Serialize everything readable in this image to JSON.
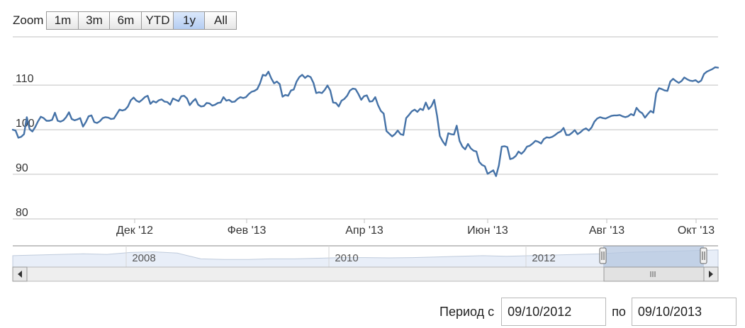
{
  "zoom": {
    "label": "Zoom",
    "buttons": [
      {
        "label": "1m",
        "active": false
      },
      {
        "label": "3m",
        "active": false
      },
      {
        "label": "6m",
        "active": false
      },
      {
        "label": "YTD",
        "active": false
      },
      {
        "label": "1y",
        "active": true
      },
      {
        "label": "All",
        "active": false
      }
    ]
  },
  "period": {
    "label_from": "Период с",
    "from_value": "09/10/2012",
    "label_to": "по",
    "to_value": "09/10/2013"
  },
  "colors": {
    "series": "#4572a7",
    "grid": "#c0c0c0",
    "navigator_fill": "#e8eef8",
    "navigator_selected": "#b5c7e0"
  },
  "chart_data": {
    "type": "line",
    "series": [
      {
        "values": [
          100,
          99.8,
          98.2,
          98.4,
          99,
          102.8,
          100.1,
          99.6,
          100.6,
          101.9,
          102.9,
          102.6,
          102,
          102,
          102.2,
          103.8,
          102,
          101.8,
          102.1,
          102.8,
          103.9,
          102.4,
          102.1,
          102.3,
          102.6,
          100.7,
          101.7,
          103,
          103.2,
          101.7,
          101.5,
          101.9,
          102.6,
          102.8,
          102.7,
          102.4,
          102.5,
          103.5,
          104.5,
          104.3,
          104.5,
          105.2,
          106.6,
          107.2,
          106.5,
          106.2,
          106.7,
          107.3,
          107.6,
          105.8,
          106.4,
          106.1,
          106.6,
          106.8,
          106.3,
          106.2,
          105.6,
          107,
          106.7,
          106.4,
          107.5,
          107.6,
          107,
          105.5,
          106.3,
          106.9,
          105.6,
          105.2,
          105.3,
          106,
          105.9,
          105.4,
          105.6,
          106,
          106.1,
          107.3,
          106.5,
          106.7,
          106.2,
          106.3,
          106.9,
          107.3,
          107.1,
          107.3,
          108,
          108.5,
          108.7,
          109.1,
          110.4,
          112.3,
          112.1,
          113,
          111.5,
          110.4,
          110.8,
          110.2,
          107.4,
          107.8,
          107.6,
          108.8,
          109,
          110.8,
          111.8,
          112.3,
          111.6,
          112.1,
          111.8,
          110.5,
          108.2,
          108.4,
          108.2,
          108.9,
          109.9,
          108.8,
          106.1,
          106,
          105.2,
          106.5,
          106.9,
          107.6,
          108.8,
          109.2,
          109.1,
          108,
          106.7,
          107.5,
          107.7,
          106.3,
          106.4,
          107.3,
          105.5,
          104.2,
          103.6,
          99.7,
          99.1,
          98.5,
          99,
          99.8,
          99,
          98.8,
          102.6,
          103.3,
          104.1,
          104.5,
          104,
          104.7,
          104.4,
          106.1,
          104.6,
          105.3,
          106.7,
          103.1,
          98.6,
          97.4,
          96.5,
          99.2,
          99,
          98.9,
          100.9,
          97.5,
          96.2,
          95.6,
          96.8,
          95.8,
          95.3,
          95.1,
          92.8,
          92.1,
          91.8,
          90.1,
          90.5,
          90.9,
          89.6,
          92,
          96.2,
          96.3,
          96.1,
          93.4,
          93.6,
          94.1,
          95.1,
          94.6,
          95.2,
          96.2,
          96.4,
          96.9,
          97.5,
          97.3,
          96.9,
          97.9,
          98.3,
          98.2,
          98.4,
          98.8,
          99.3,
          99.6,
          100.4,
          98.8,
          98.8,
          99.3,
          99.9,
          99,
          99.4,
          100,
          100.3,
          99.8,
          100.5,
          101.8,
          102.5,
          102.8,
          102.6,
          102.5,
          102.8,
          103.1,
          103.2,
          103.2,
          103.3,
          103,
          102.8,
          103,
          103.5,
          103.2,
          104.9,
          104.1,
          103.7,
          102.7,
          103.5,
          104.2,
          103.8,
          108.2,
          109.3,
          109.1,
          108.8,
          108.7,
          110.8,
          111.4,
          110.9,
          110.5,
          110.9,
          111.7,
          111.3,
          111,
          110.9,
          111.1,
          110.6,
          111,
          112.5,
          113,
          113.3,
          113.6,
          114,
          113.9
        ]
      }
    ],
    "x_tick_labels": [
      "Дек '12",
      "Фев '13",
      "Апр '13",
      "Июн '13",
      "Авг '13",
      "Окт '13"
    ],
    "y_ticks": [
      80,
      90,
      100,
      110
    ],
    "ylim": [
      80,
      120
    ],
    "navigator_labels": [
      "2008",
      "2010",
      "2012"
    ],
    "grid": true
  }
}
